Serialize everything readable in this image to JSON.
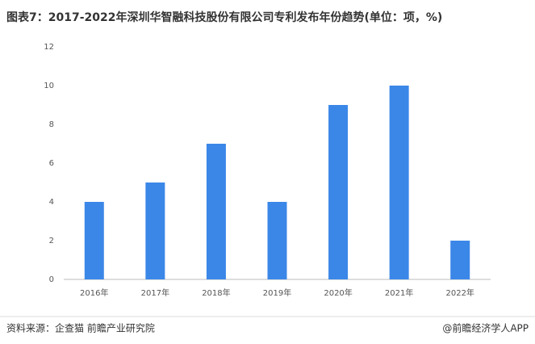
{
  "chart_data": {
    "type": "bar",
    "title": "图表7：2017-2022年深圳华智融科技股份有限公司专利发布年份趋势(单位：项，%)",
    "categories": [
      "2016年",
      "2017年",
      "2018年",
      "2019年",
      "2020年",
      "2021年",
      "2022年"
    ],
    "values": [
      4,
      5,
      7,
      4,
      9,
      10,
      2
    ],
    "color": "#3b87e8",
    "ylim": [
      0,
      12
    ],
    "yticks": [
      0,
      2,
      4,
      6,
      8,
      10,
      12
    ],
    "grid": false,
    "source": "资料来源：企查猫 前瞻产业研究院",
    "credit": "@前瞻经济学人APP"
  }
}
